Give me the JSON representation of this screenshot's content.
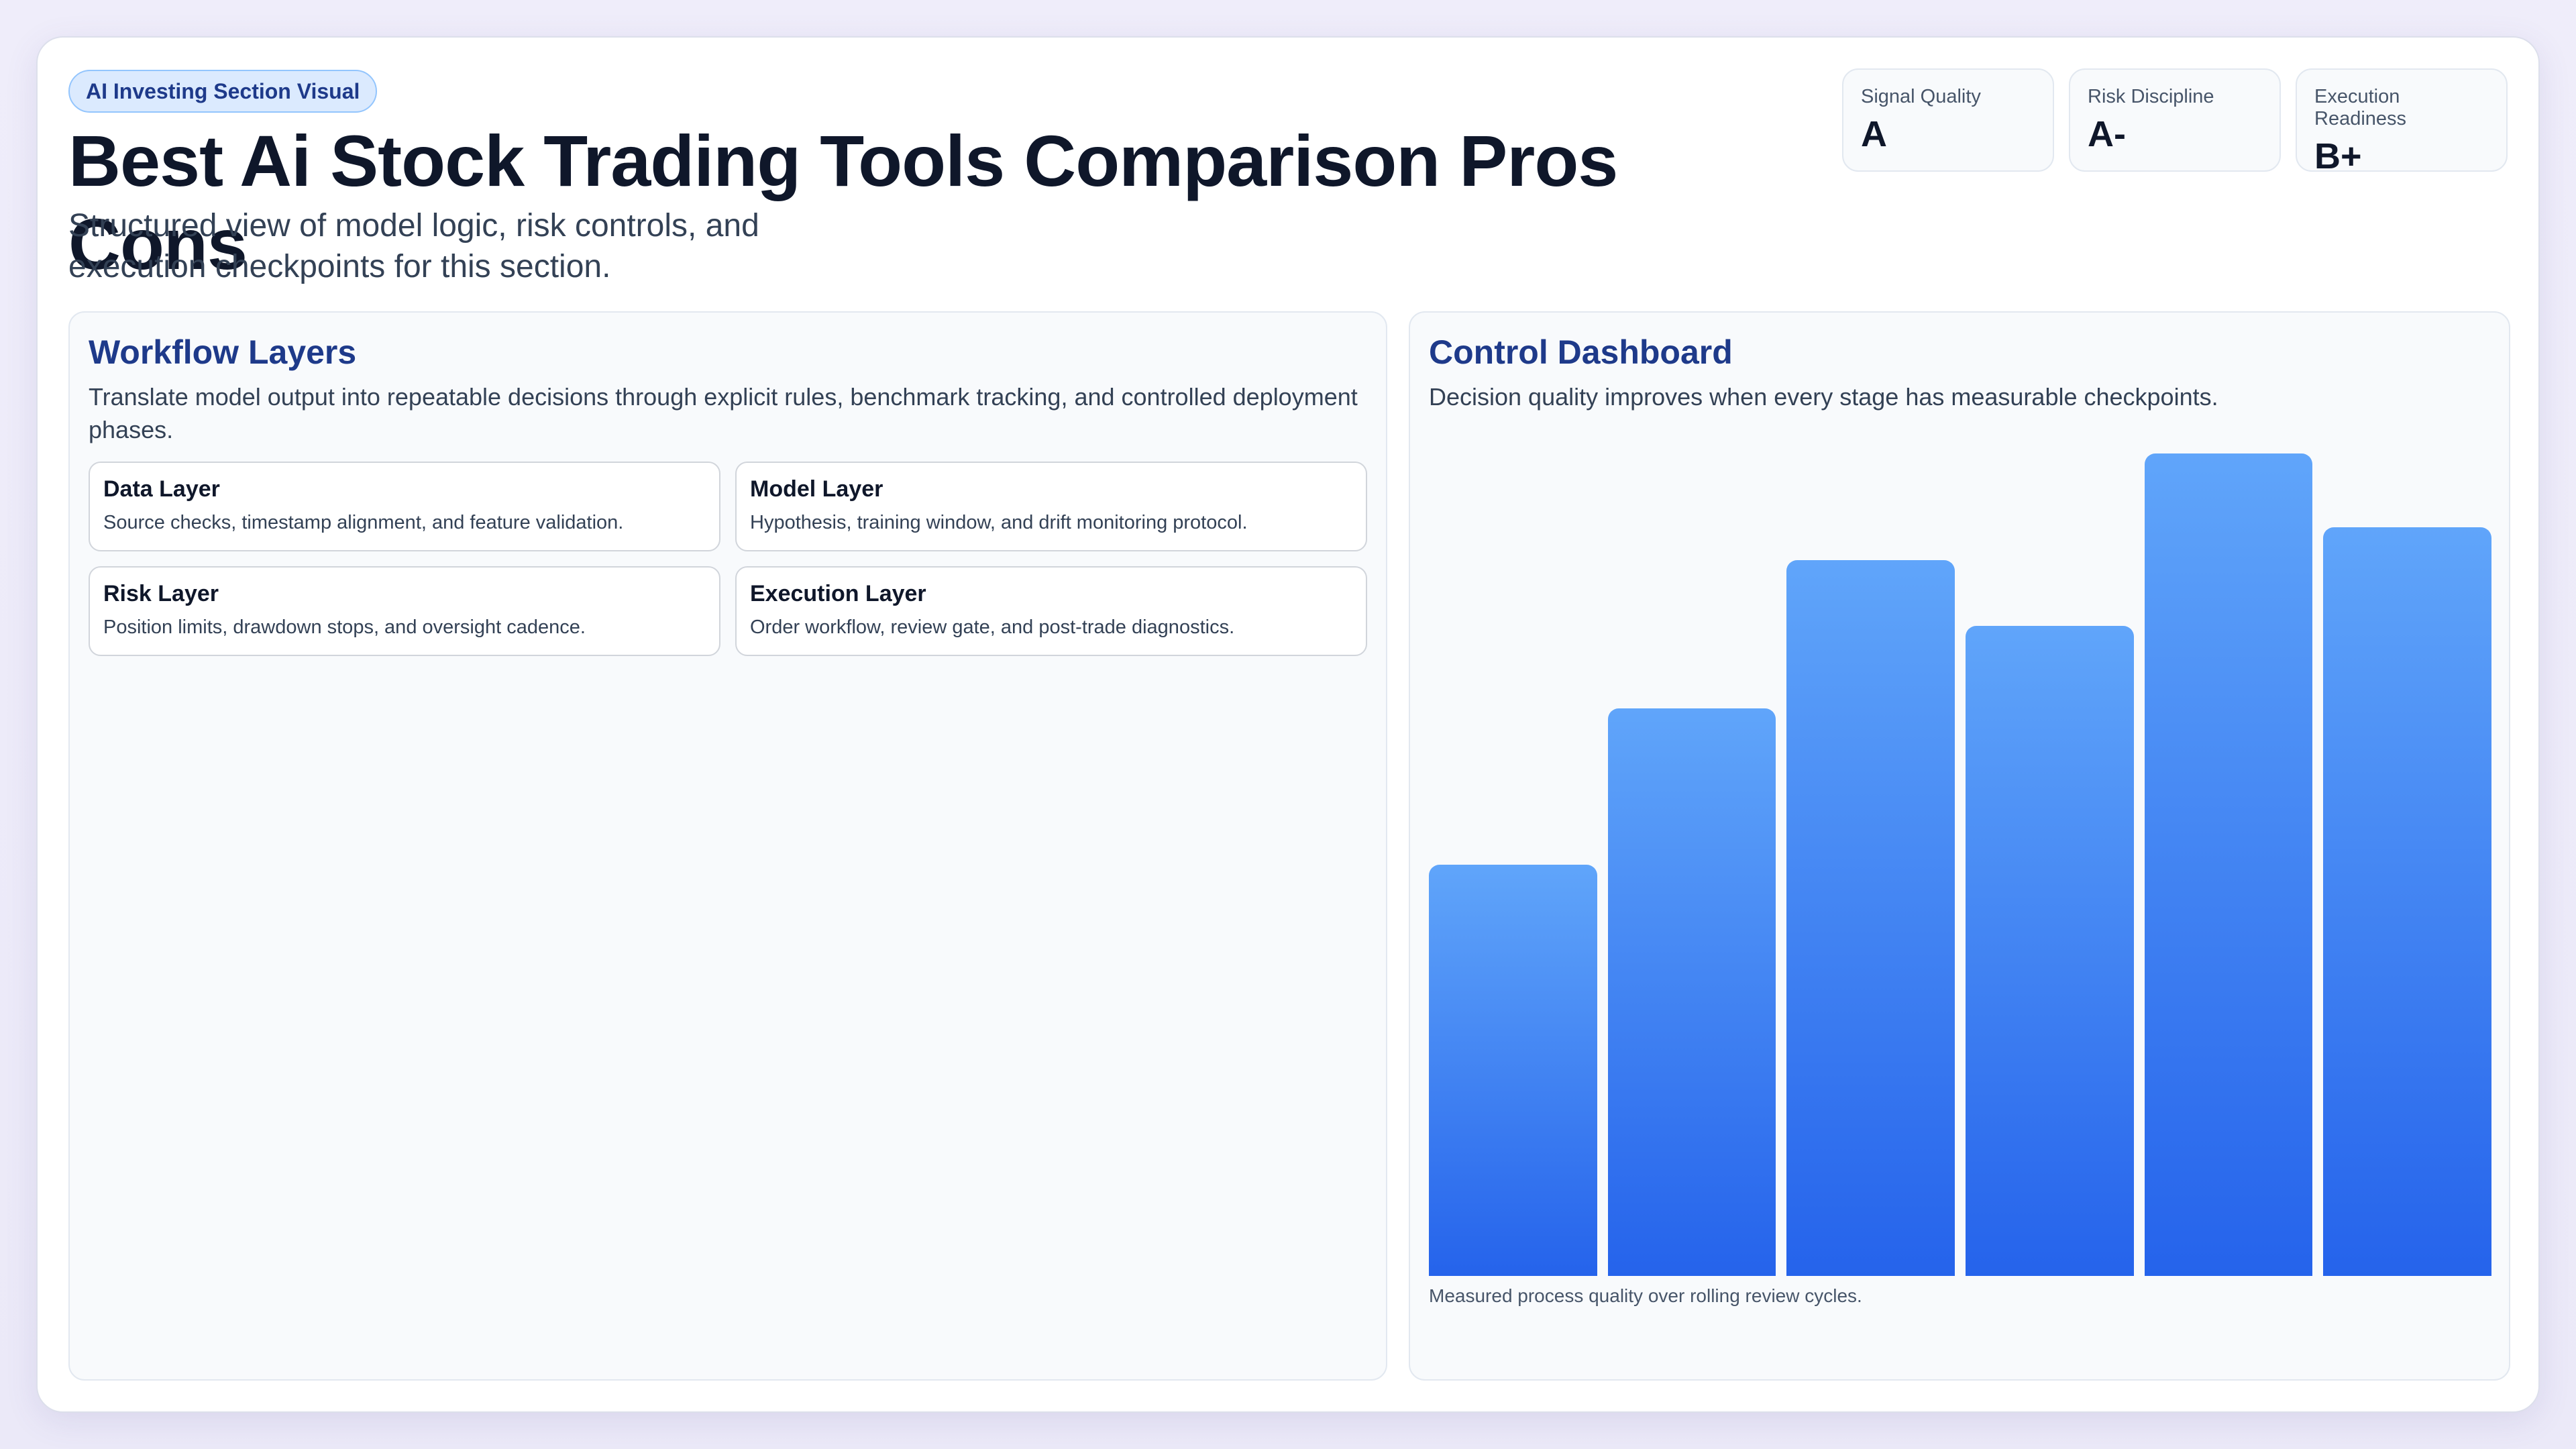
{
  "header": {
    "badge": "AI Investing Section Visual",
    "title": "Best Ai Stock Trading Tools Comparison Pros Cons",
    "subtitle": "Structured view of model logic, risk controls, and execution checkpoints for this section."
  },
  "metrics": [
    {
      "label": "Signal Quality",
      "value": "A"
    },
    {
      "label": "Risk Discipline",
      "value": "A-"
    },
    {
      "label": "Execution Readiness",
      "value": "B+"
    }
  ],
  "workflow": {
    "title": "Workflow Layers",
    "description": "Translate model output into repeatable decisions through explicit rules, benchmark tracking, and controlled deployment phases.",
    "layers": [
      {
        "title": "Data Layer",
        "description": "Source checks, timestamp alignment, and feature validation."
      },
      {
        "title": "Model Layer",
        "description": "Hypothesis, training window, and drift monitoring protocol."
      },
      {
        "title": "Risk Layer",
        "description": "Position limits, drawdown stops, and oversight cadence."
      },
      {
        "title": "Execution Layer",
        "description": "Order workflow, review gate, and post-trade diagnostics."
      }
    ]
  },
  "dashboard": {
    "title": "Control Dashboard",
    "description": "Decision quality improves when every stage has measurable checkpoints.",
    "caption": "Measured process quality over rolling review cycles."
  },
  "colors": {
    "accent": "#1e3a8a",
    "bar_top": "#60a5fa",
    "bar_bottom": "#2563eb"
  },
  "chart_data": {
    "type": "bar",
    "categories": [
      "",
      "",
      "",
      "",
      "",
      ""
    ],
    "values": [
      50,
      69,
      87,
      79,
      100,
      91
    ],
    "ylim": [
      0,
      100
    ],
    "title": "",
    "xlabel": "",
    "ylabel": "",
    "grid": false,
    "legend": "none"
  }
}
